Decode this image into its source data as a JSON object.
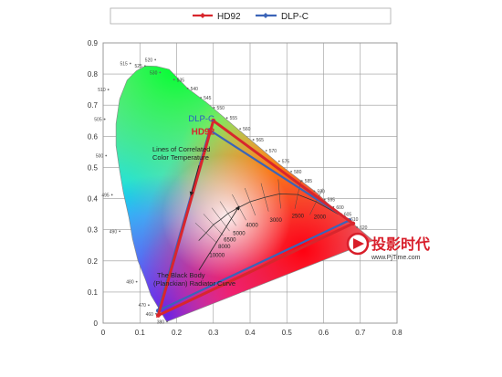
{
  "chart_data": {
    "type": "scatter",
    "subtype": "CIE 1931 chromaticity diagram",
    "xlim": [
      0,
      0.8
    ],
    "ylim": [
      0,
      0.9
    ],
    "x_ticks": [
      "0",
      "0.1",
      "0.2",
      "0.3",
      "0.4",
      "0.5",
      "0.6",
      "0.7",
      "0.8"
    ],
    "y_ticks": [
      "0",
      "0.1",
      "0.2",
      "0.3",
      "0.4",
      "0.5",
      "0.6",
      "0.7",
      "0.8",
      "0.9"
    ],
    "grid": true,
    "legend_position": "top",
    "series": [
      {
        "name": "HD92",
        "color": "#d8262d",
        "points": [
          [
            0.3,
            0.65
          ],
          [
            0.68,
            0.32
          ],
          [
            0.15,
            0.025
          ]
        ]
      },
      {
        "name": "DLP-C",
        "color": "#3b64b8",
        "points": [
          [
            0.29,
            0.62
          ],
          [
            0.67,
            0.33
          ],
          [
            0.15,
            0.04
          ]
        ]
      }
    ],
    "spectral_locus": [
      [
        0.174,
        0.005
      ],
      [
        0.17,
        0.01
      ],
      [
        0.165,
        0.02
      ],
      [
        0.155,
        0.04
      ],
      [
        0.145,
        0.06
      ],
      [
        0.13,
        0.09
      ],
      [
        0.115,
        0.14
      ],
      [
        0.095,
        0.2
      ],
      [
        0.08,
        0.27
      ],
      [
        0.07,
        0.34
      ],
      [
        0.055,
        0.42
      ],
      [
        0.045,
        0.49
      ],
      [
        0.035,
        0.57
      ],
      [
        0.035,
        0.64
      ],
      [
        0.045,
        0.72
      ],
      [
        0.065,
        0.78
      ],
      [
        0.09,
        0.81
      ],
      [
        0.115,
        0.826
      ],
      [
        0.145,
        0.825
      ],
      [
        0.18,
        0.815
      ],
      [
        0.23,
        0.754
      ],
      [
        0.28,
        0.71
      ],
      [
        0.33,
        0.66
      ],
      [
        0.38,
        0.61
      ],
      [
        0.43,
        0.56
      ],
      [
        0.48,
        0.51
      ],
      [
        0.53,
        0.465
      ],
      [
        0.58,
        0.42
      ],
      [
        0.625,
        0.37
      ],
      [
        0.66,
        0.34
      ],
      [
        0.7,
        0.3
      ],
      [
        0.735,
        0.265
      ]
    ],
    "wavelength_labels": [
      {
        "text": "380",
        "x": 0.174,
        "y": 0.005
      },
      {
        "text": "460",
        "x": 0.144,
        "y": 0.03
      },
      {
        "text": "470",
        "x": 0.124,
        "y": 0.058
      },
      {
        "text": "480",
        "x": 0.091,
        "y": 0.133
      },
      {
        "text": "490",
        "x": 0.045,
        "y": 0.295
      },
      {
        "text": "495",
        "x": 0.024,
        "y": 0.412
      },
      {
        "text": "500",
        "x": 0.008,
        "y": 0.538
      },
      {
        "text": "505",
        "x": 0.004,
        "y": 0.655
      },
      {
        "text": "510",
        "x": 0.014,
        "y": 0.75
      },
      {
        "text": "515",
        "x": 0.074,
        "y": 0.834
      },
      {
        "text": "520",
        "x": 0.142,
        "y": 0.846
      },
      {
        "text": "525",
        "x": 0.114,
        "y": 0.826
      },
      {
        "text": "530",
        "x": 0.155,
        "y": 0.805
      },
      {
        "text": "535",
        "x": 0.193,
        "y": 0.782
      },
      {
        "text": "540",
        "x": 0.23,
        "y": 0.754
      },
      {
        "text": "545",
        "x": 0.266,
        "y": 0.724
      },
      {
        "text": "550",
        "x": 0.302,
        "y": 0.692
      },
      {
        "text": "555",
        "x": 0.337,
        "y": 0.659
      },
      {
        "text": "560",
        "x": 0.373,
        "y": 0.624
      },
      {
        "text": "565",
        "x": 0.409,
        "y": 0.589
      },
      {
        "text": "570",
        "x": 0.444,
        "y": 0.554
      },
      {
        "text": "575",
        "x": 0.479,
        "y": 0.52
      },
      {
        "text": "580",
        "x": 0.512,
        "y": 0.487
      },
      {
        "text": "585",
        "x": 0.541,
        "y": 0.457
      },
      {
        "text": "590",
        "x": 0.575,
        "y": 0.424
      },
      {
        "text": "595",
        "x": 0.603,
        "y": 0.397
      },
      {
        "text": "600",
        "x": 0.627,
        "y": 0.373
      },
      {
        "text": "605",
        "x": 0.648,
        "y": 0.351
      },
      {
        "text": "610",
        "x": 0.666,
        "y": 0.334
      },
      {
        "text": "620",
        "x": 0.691,
        "y": 0.308
      }
    ],
    "planckian_locus": [
      [
        0.64,
        0.35
      ],
      [
        0.58,
        0.39
      ],
      [
        0.53,
        0.413
      ],
      [
        0.48,
        0.415
      ],
      [
        0.44,
        0.404
      ],
      [
        0.4,
        0.39
      ],
      [
        0.37,
        0.372
      ],
      [
        0.34,
        0.352
      ],
      [
        0.32,
        0.333
      ],
      [
        0.3,
        0.316
      ],
      [
        0.28,
        0.29
      ],
      [
        0.26,
        0.265
      ]
    ],
    "cct_labels": [
      "2000",
      "2500",
      "3000",
      "4000",
      "5000",
      "6500",
      "8000",
      "10000"
    ],
    "annotations": {
      "cct": "Lines of Correlated\nColor Temperature",
      "blackbody": "The Black Body\n(Planckian) Radiator Curve"
    }
  },
  "watermark": {
    "brand": "投影时代",
    "url": "www.PjTime.com"
  }
}
